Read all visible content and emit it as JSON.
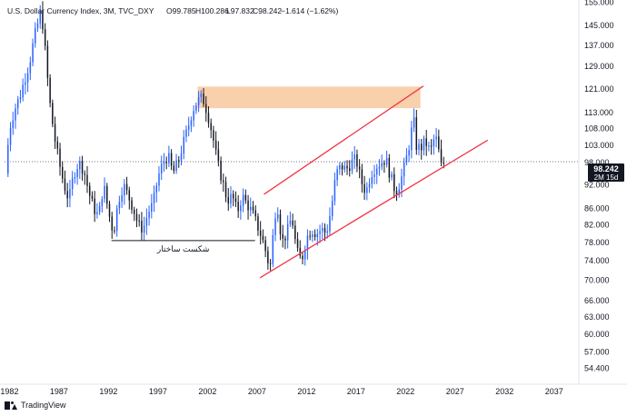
{
  "header": {
    "symbol_title": "U.S. Dollar Currency Index, 3M, TVC_DXY",
    "open": "O99.785",
    "high": "H100.286",
    "low": "L97.832",
    "close": "C98.242",
    "change": "−1.614 (−1.62%)"
  },
  "price_label": {
    "value": "98.242",
    "countdown": "2M 15d"
  },
  "annotation": {
    "label": "شکست ساختار"
  },
  "footer": {
    "brand": "TradingView"
  },
  "colors": {
    "up": "#2962ff",
    "down": "#131722",
    "channel": "#f23645",
    "zone": "#f7c89c",
    "baseline": "#131722",
    "price_line": "#787b86"
  },
  "chart_data": {
    "type": "candlestick",
    "title": "U.S. Dollar Currency Index, 3M, TVC_DXY",
    "y_scale": "log",
    "ylim": [
      52,
      156
    ],
    "xlim": [
      1981.5,
      2039.5
    ],
    "y_ticks": [
      "155.000",
      "145.000",
      "137.000",
      "129.000",
      "121.000",
      "113.000",
      "108.000",
      "103.000",
      "98.000",
      "92.000",
      "86.000",
      "82.000",
      "78.000",
      "74.000",
      "70.000",
      "66.000",
      "63.000",
      "60.000",
      "57.000",
      "54.400"
    ],
    "x_ticks": [
      "1982",
      "1987",
      "1992",
      "1997",
      "2002",
      "2007",
      "2012",
      "2017",
      "2022",
      "2027",
      "2032",
      "2037"
    ],
    "last_close": 98.242,
    "series": [
      {
        "name": "price",
        "points": [
          [
            1981.6,
            95
          ],
          [
            1982.0,
            108
          ],
          [
            1982.5,
            114
          ],
          [
            1983.0,
            118
          ],
          [
            1983.5,
            124
          ],
          [
            1984.0,
            130
          ],
          [
            1984.5,
            140
          ],
          [
            1985.0,
            148
          ],
          [
            1985.2,
            152
          ],
          [
            1985.6,
            135
          ],
          [
            1986.0,
            118
          ],
          [
            1986.5,
            106
          ],
          [
            1987.0,
            98
          ],
          [
            1987.5,
            92
          ],
          [
            1988.0,
            88
          ],
          [
            1988.5,
            95
          ],
          [
            1989.0,
            98
          ],
          [
            1989.5,
            96
          ],
          [
            1990.0,
            90
          ],
          [
            1990.5,
            86
          ],
          [
            1991.0,
            84
          ],
          [
            1991.5,
            92
          ],
          [
            1992.0,
            85
          ],
          [
            1992.5,
            80
          ],
          [
            1993.0,
            88
          ],
          [
            1993.5,
            92
          ],
          [
            1994.0,
            89
          ],
          [
            1994.5,
            86
          ],
          [
            1995.0,
            82
          ],
          [
            1995.5,
            81
          ],
          [
            1996.0,
            85
          ],
          [
            1996.5,
            87
          ],
          [
            1997.0,
            94
          ],
          [
            1997.5,
            98
          ],
          [
            1998.0,
            100
          ],
          [
            1998.5,
            95
          ],
          [
            1999.0,
            98
          ],
          [
            1999.5,
            103
          ],
          [
            2000.0,
            108
          ],
          [
            2000.5,
            114
          ],
          [
            2001.0,
            117
          ],
          [
            2001.5,
            118
          ],
          [
            2002.0,
            113
          ],
          [
            2002.5,
            106
          ],
          [
            2003.0,
            98
          ],
          [
            2003.5,
            93
          ],
          [
            2004.0,
            88
          ],
          [
            2004.5,
            89
          ],
          [
            2005.0,
            85
          ],
          [
            2005.5,
            89
          ],
          [
            2006.0,
            87
          ],
          [
            2006.5,
            85
          ],
          [
            2007.0,
            82
          ],
          [
            2007.5,
            79
          ],
          [
            2008.0,
            75
          ],
          [
            2008.3,
            72
          ],
          [
            2008.8,
            84
          ],
          [
            2009.0,
            88
          ],
          [
            2009.5,
            78
          ],
          [
            2010.0,
            80
          ],
          [
            2010.5,
            84
          ],
          [
            2011.0,
            76
          ],
          [
            2011.5,
            74
          ],
          [
            2012.0,
            79
          ],
          [
            2012.5,
            81
          ],
          [
            2013.0,
            80
          ],
          [
            2013.5,
            81
          ],
          [
            2014.0,
            80
          ],
          [
            2014.5,
            86
          ],
          [
            2015.0,
            95
          ],
          [
            2015.5,
            97
          ],
          [
            2016.0,
            96
          ],
          [
            2016.5,
            98
          ],
          [
            2017.0,
            99
          ],
          [
            2017.5,
            93
          ],
          [
            2018.0,
            90
          ],
          [
            2018.5,
            95
          ],
          [
            2019.0,
            97
          ],
          [
            2019.5,
            98
          ],
          [
            2020.0,
            99
          ],
          [
            2020.5,
            94
          ],
          [
            2021.0,
            90
          ],
          [
            2021.5,
            93
          ],
          [
            2022.0,
            98
          ],
          [
            2022.5,
            105
          ],
          [
            2022.8,
            112
          ],
          [
            2023.0,
            103
          ],
          [
            2023.5,
            102
          ],
          [
            2024.0,
            104
          ],
          [
            2024.5,
            101
          ],
          [
            2025.0,
            106
          ],
          [
            2025.3,
            102
          ],
          [
            2025.6,
            97
          ],
          [
            2025.9,
            98.242
          ]
        ]
      }
    ],
    "zone": {
      "x": [
        2001.0,
        2023.5
      ],
      "y": [
        114.5,
        121.8
      ]
    },
    "channel_upper": [
      [
        2007.7,
        89.5
      ],
      [
        2023.8,
        122
      ]
    ],
    "channel_lower": [
      [
        2007.3,
        70.5
      ],
      [
        2030.3,
        104.5
      ]
    ],
    "support_line": {
      "x": [
        1992.3,
        2006.8
      ],
      "y": 78.4
    },
    "price_line_value": 98.242
  }
}
